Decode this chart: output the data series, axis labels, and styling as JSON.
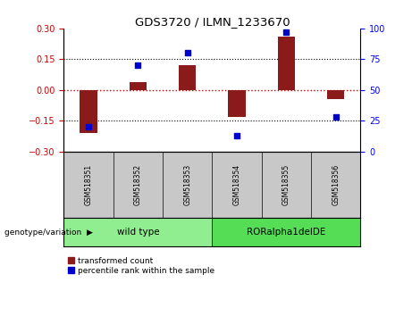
{
  "title": "GDS3720 / ILMN_1233670",
  "samples": [
    "GSM518351",
    "GSM518352",
    "GSM518353",
    "GSM518354",
    "GSM518355",
    "GSM518356"
  ],
  "transformed_count": [
    -0.21,
    0.04,
    0.12,
    -0.13,
    0.26,
    -0.045
  ],
  "percentile_rank": [
    20,
    70,
    80,
    13,
    97,
    28
  ],
  "groups": [
    {
      "label": "wild type",
      "samples": [
        0,
        1,
        2
      ],
      "color": "#90EE90"
    },
    {
      "label": "RORalpha1delDE",
      "samples": [
        3,
        4,
        5
      ],
      "color": "#55DD55"
    }
  ],
  "ylim_left": [
    -0.3,
    0.3
  ],
  "ylim_right": [
    0,
    100
  ],
  "yticks_left": [
    -0.3,
    -0.15,
    0,
    0.15,
    0.3
  ],
  "yticks_right": [
    0,
    25,
    50,
    75,
    100
  ],
  "bar_color": "#8B1A1A",
  "dot_color": "#0000CD",
  "zero_line_color": "#CC0000",
  "background_color": "#FFFFFF",
  "bar_width": 0.35,
  "legend_labels": [
    "transformed count",
    "percentile rank within the sample"
  ],
  "genotype_label": "genotype/variation"
}
